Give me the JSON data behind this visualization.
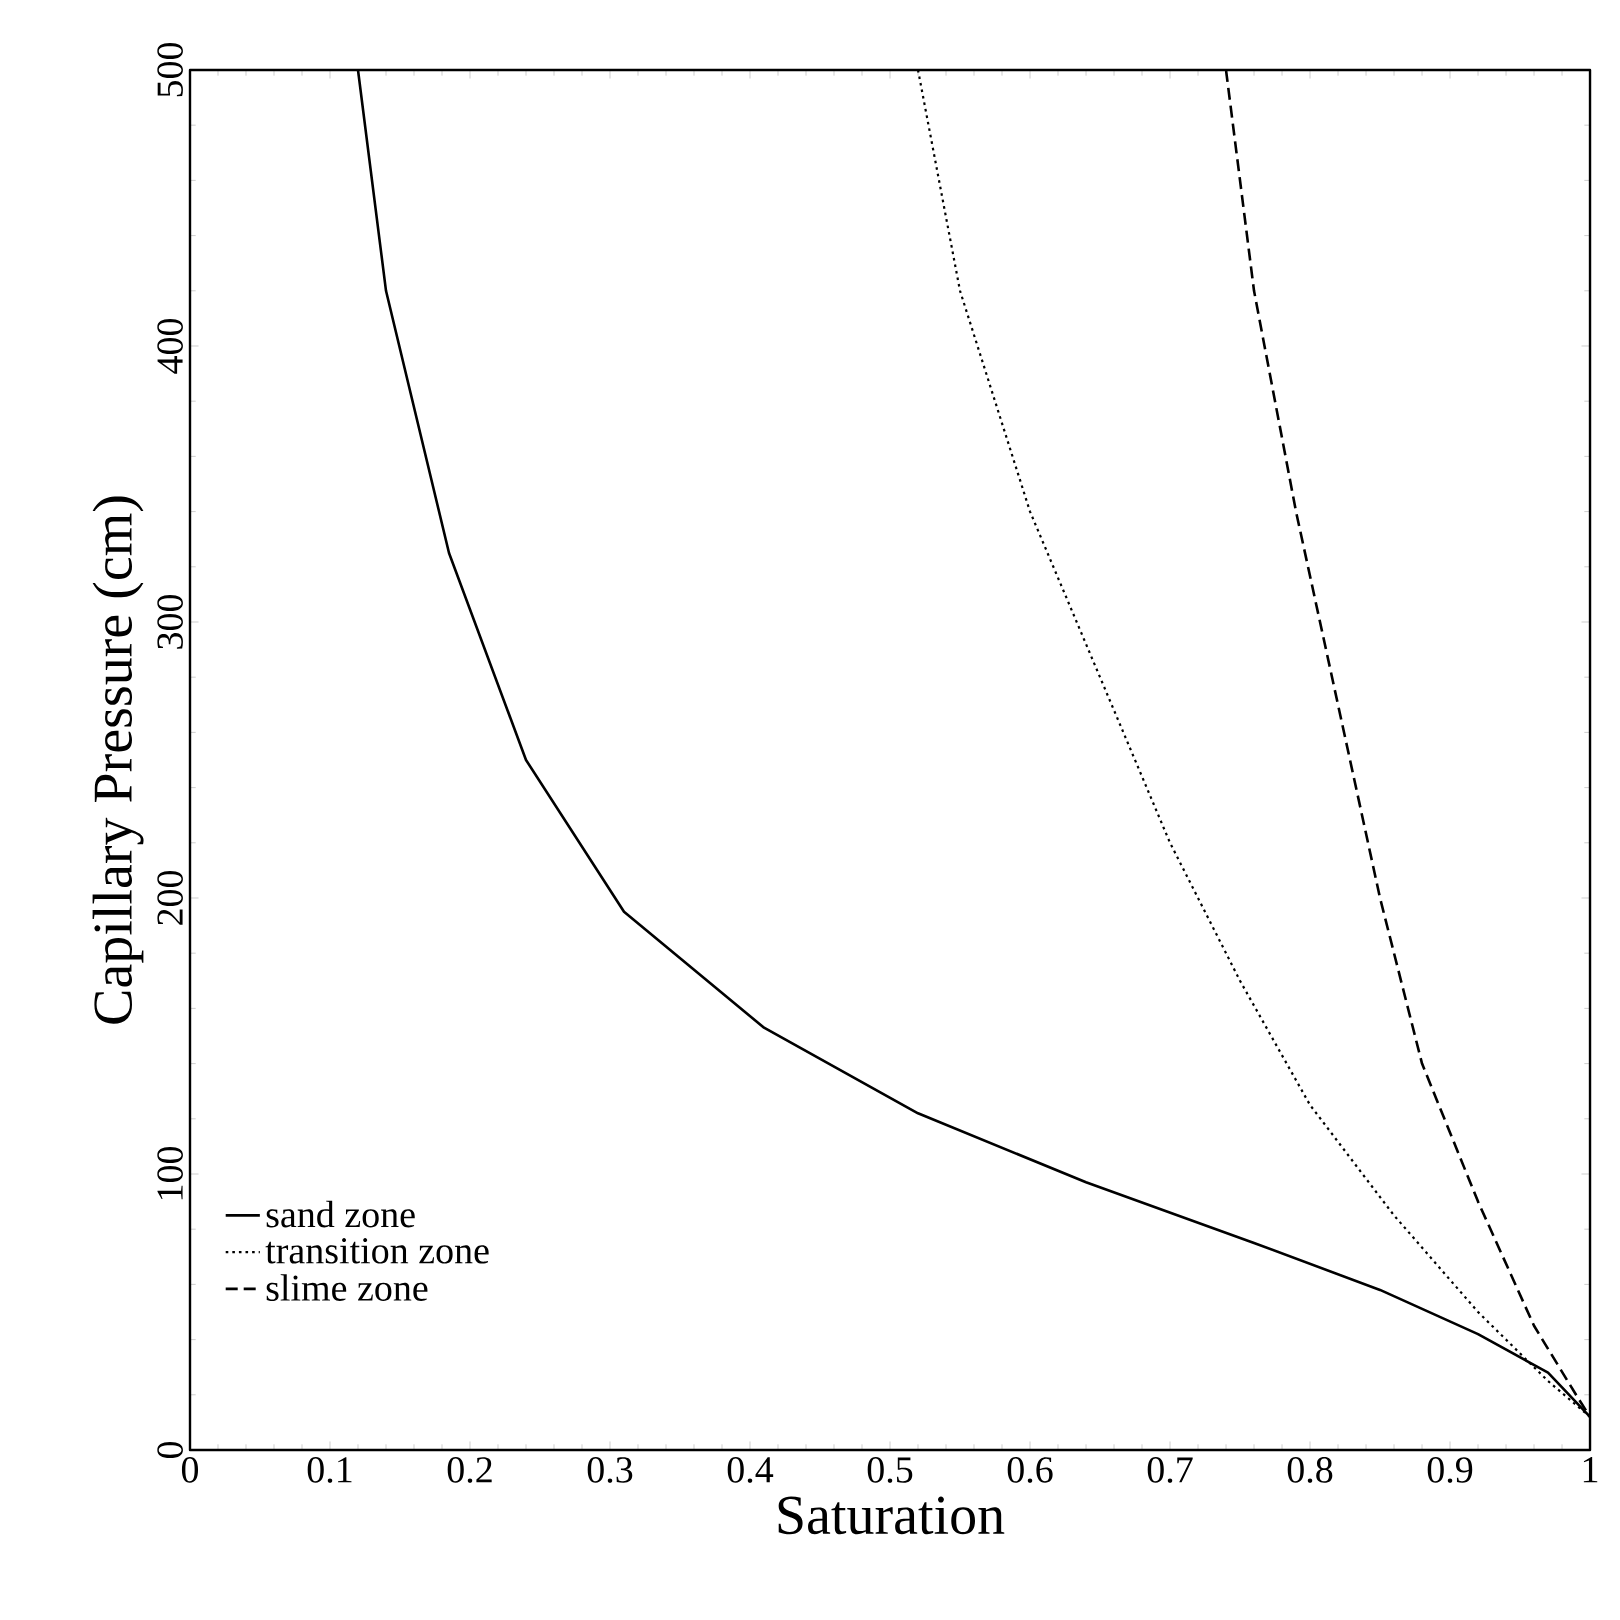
{
  "chart_data": {
    "type": "line",
    "xlabel": "Saturation",
    "ylabel": "Capillary Pressure (cm)",
    "xlim": [
      0,
      1
    ],
    "ylim": [
      0,
      500
    ],
    "xticks": [
      0,
      0.1,
      0.2,
      0.3,
      0.4,
      0.5,
      0.6,
      0.7,
      0.8,
      0.9,
      1
    ],
    "yticks": [
      0,
      100,
      200,
      300,
      400,
      500
    ],
    "grid": false,
    "legend": "bottom left",
    "marker": "none",
    "series": [
      {
        "name": "sand zone",
        "color": "#000000",
        "line_style": "solid",
        "x": [
          0.12,
          0.14,
          0.185,
          0.24,
          0.31,
          0.41,
          0.52,
          0.64,
          0.76,
          0.85,
          0.92,
          0.97,
          1.0
        ],
        "values": [
          500,
          420,
          325,
          250,
          195,
          153,
          122,
          97,
          75,
          58,
          42,
          28,
          12
        ]
      },
      {
        "name": "transition zone",
        "color": "#000000",
        "line_style": "dotted",
        "x": [
          0.52,
          0.55,
          0.6,
          0.65,
          0.7,
          0.75,
          0.8,
          0.86,
          0.92,
          0.97,
          1.0
        ],
        "values": [
          500,
          420,
          340,
          280,
          220,
          170,
          125,
          85,
          50,
          25,
          12
        ]
      },
      {
        "name": "slime zone",
        "color": "#000000",
        "line_style": "dashed",
        "x": [
          0.74,
          0.76,
          0.79,
          0.82,
          0.85,
          0.88,
          0.92,
          0.96,
          0.99,
          1.0
        ],
        "values": [
          500,
          420,
          340,
          270,
          200,
          140,
          90,
          45,
          20,
          12
        ]
      }
    ]
  }
}
